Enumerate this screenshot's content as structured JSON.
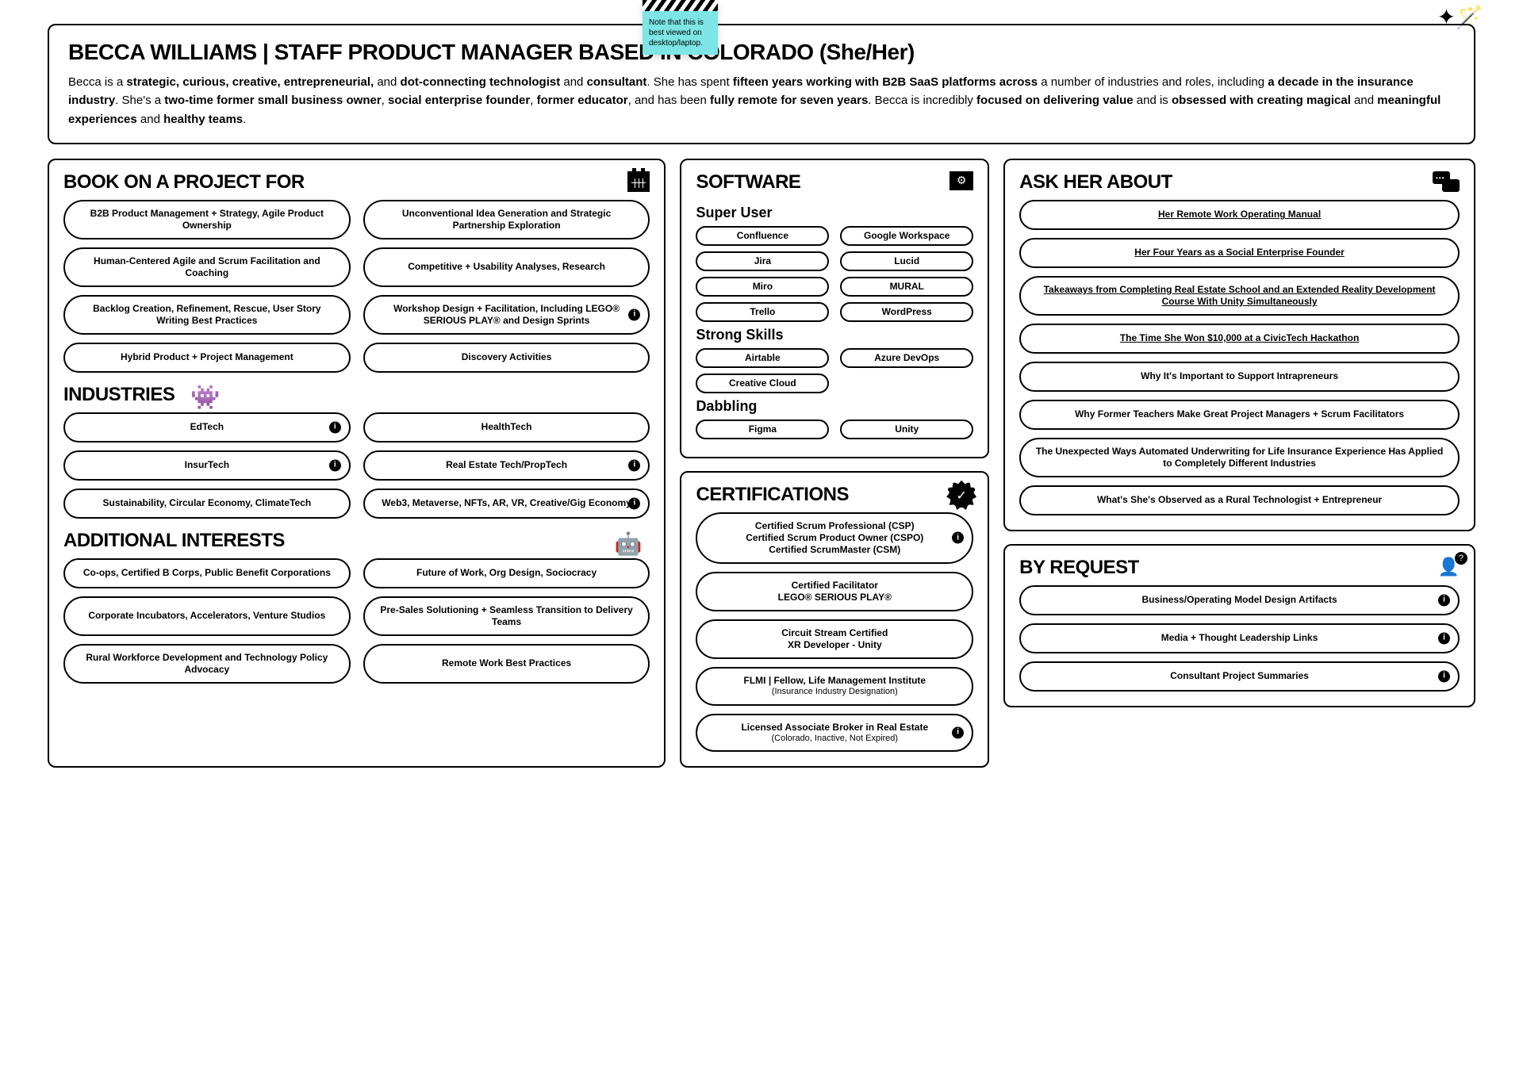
{
  "sticky_note": "Note that this is best viewed on desktop/laptop.",
  "header": {
    "title": "BECCA WILLIAMS | STAFF PRODUCT MANAGER BASED IN COLORADO (She/Her)",
    "bio_html": "Becca is a <b>strategic, curious, creative, entrepreneurial,</b> and <b>dot-connecting technologist</b> and <b>consultant</b>. She has spent <b>fifteen years working with B2B SaaS platforms across</b> a number of industries and roles, including <b>a decade in the insurance industry</b>. She's a <b>two-time former small business owner</b>, <b>social enterprise founder</b>, <b>former educator</b>, and has been <b>fully remote for seven years</b>. Becca is incredibly <b>focused on delivering value</b> and is <b>obsessed with creating magical</b> and <b>meaningful experiences</b> and <b>healthy teams</b>."
  },
  "book": {
    "title": "BOOK ON A PROJECT FOR",
    "items": [
      {
        "label": "B2B Product Management + Strategy, Agile Product Ownership"
      },
      {
        "label": "Unconventional Idea Generation and Strategic Partnership Exploration"
      },
      {
        "label": "Human-Centered Agile and Scrum Facilitation and Coaching"
      },
      {
        "label": "Competitive + Usability Analyses, Research"
      },
      {
        "label": "Backlog Creation, Refinement, Rescue, User Story Writing Best Practices"
      },
      {
        "label": "Workshop Design + Facilitation, Including LEGO® SERIOUS PLAY® and Design Sprints",
        "info": true
      },
      {
        "label": "Hybrid Product + Project Management"
      },
      {
        "label": "Discovery Activities"
      }
    ]
  },
  "industries": {
    "title": "INDUSTRIES",
    "items": [
      {
        "label": "EdTech",
        "info": true
      },
      {
        "label": "HealthTech"
      },
      {
        "label": "InsurTech",
        "info": true
      },
      {
        "label": "Real Estate Tech/PropTech",
        "info": true
      },
      {
        "label": "Sustainability, Circular Economy, ClimateTech"
      },
      {
        "label": "Web3, Metaverse, NFTs, AR, VR, Creative/Gig Economy",
        "info": true
      }
    ]
  },
  "interests": {
    "title": "ADDITIONAL INTERESTS",
    "items": [
      {
        "label": "Co-ops, Certified B Corps, Public Benefit Corporations"
      },
      {
        "label": "Future of Work, Org Design, Sociocracy"
      },
      {
        "label": "Corporate Incubators, Accelerators, Venture Studios"
      },
      {
        "label": "Pre-Sales Solutioning + Seamless Transition to Delivery Teams"
      },
      {
        "label": "Rural Workforce Development and Technology Policy Advocacy"
      },
      {
        "label": "Remote Work Best Practices"
      }
    ]
  },
  "software": {
    "title": "SOFTWARE",
    "super_title": "Super User",
    "super": [
      "Confluence",
      "Google Workspace",
      "Jira",
      "Lucid",
      "Miro",
      "MURAL",
      "Trello",
      "WordPress"
    ],
    "strong_title": "Strong Skills",
    "strong": [
      "Airtable",
      "Azure DevOps",
      "Creative Cloud"
    ],
    "dabbling_title": "Dabbling",
    "dabbling": [
      "Figma",
      "Unity"
    ]
  },
  "certs": {
    "title": "CERTIFICATIONS",
    "items": [
      {
        "label": "Certified Scrum Professional (CSP)\nCertified Scrum Product Owner (CSPO)\nCertified ScrumMaster (CSM)",
        "info": true
      },
      {
        "label": "Certified Facilitator\nLEGO® SERIOUS PLAY®"
      },
      {
        "label": "Circuit Stream Certified\nXR Developer - Unity"
      },
      {
        "label": "FLMI | Fellow, Life Management Institute",
        "sub": "(Insurance Industry Designation)"
      },
      {
        "label": "Licensed Associate Broker in Real Estate",
        "sub": "(Colorado, Inactive, Not Expired)",
        "info": true
      }
    ]
  },
  "ask": {
    "title": "ASK HER ABOUT",
    "items": [
      {
        "label": "Her Remote Work Operating Manual",
        "link": true
      },
      {
        "label": "Her Four Years as a Social Enterprise Founder",
        "link": true
      },
      {
        "label": "Takeaways from Completing Real Estate School and an Extended Reality Development Course With Unity Simultaneously",
        "link": true
      },
      {
        "label": "The Time She Won $10,000 at a CivicTech Hackathon",
        "link": true
      },
      {
        "label": "Why It's Important to Support Intrapreneurs"
      },
      {
        "label": "Why Former Teachers Make Great Project Managers + Scrum Facilitators"
      },
      {
        "label": "The Unexpected Ways Automated Underwriting for Life Insurance Experience Has Applied to Completely Different Industries"
      },
      {
        "label": "What's She's Observed as a Rural Technologist + Entrepreneur"
      }
    ]
  },
  "request": {
    "title": "BY REQUEST",
    "items": [
      {
        "label": "Business/Operating Model Design Artifacts",
        "info": true
      },
      {
        "label": "Media + Thought Leadership Links",
        "info": true
      },
      {
        "label": "Consultant Project Summaries",
        "info": true
      }
    ]
  }
}
